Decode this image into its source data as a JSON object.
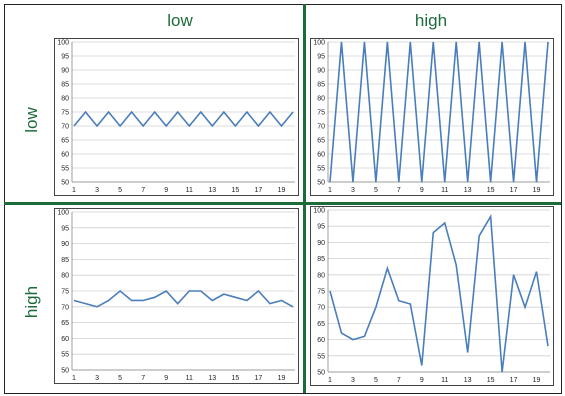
{
  "column_headers": [
    "low",
    "high"
  ],
  "row_headers": [
    "low",
    "high"
  ],
  "line_color": "#4a7ebb",
  "divider_color": "#1e6b3a",
  "chart_data": [
    {
      "type": "line",
      "panel": "top-left",
      "x": [
        1,
        2,
        3,
        4,
        5,
        6,
        7,
        8,
        9,
        10,
        11,
        12,
        13,
        14,
        15,
        16,
        17,
        18,
        19,
        20
      ],
      "xticks": [
        1,
        3,
        5,
        7,
        9,
        11,
        13,
        15,
        17,
        19
      ],
      "series": [
        {
          "values": [
            70,
            75,
            70,
            75,
            70,
            75,
            70,
            75,
            70,
            75,
            70,
            75,
            70,
            75,
            70,
            75,
            70,
            75,
            70,
            75
          ]
        }
      ],
      "ylim": [
        50,
        100
      ],
      "yticks": [
        50,
        55,
        60,
        65,
        70,
        75,
        80,
        85,
        90,
        95,
        100
      ],
      "grid": true
    },
    {
      "type": "line",
      "panel": "top-right",
      "x": [
        1,
        2,
        3,
        4,
        5,
        6,
        7,
        8,
        9,
        10,
        11,
        12,
        13,
        14,
        15,
        16,
        17,
        18,
        19,
        20
      ],
      "xticks": [
        1,
        3,
        5,
        7,
        9,
        11,
        13,
        15,
        17,
        19
      ],
      "series": [
        {
          "values": [
            50,
            100,
            50,
            100,
            50,
            100,
            50,
            100,
            50,
            100,
            50,
            100,
            50,
            100,
            50,
            100,
            50,
            100,
            50,
            100
          ]
        }
      ],
      "ylim": [
        50,
        100
      ],
      "yticks": [
        50,
        55,
        60,
        65,
        70,
        75,
        80,
        85,
        90,
        95,
        100
      ],
      "grid": true
    },
    {
      "type": "line",
      "panel": "bottom-left",
      "x": [
        1,
        2,
        3,
        4,
        5,
        6,
        7,
        8,
        9,
        10,
        11,
        12,
        13,
        14,
        15,
        16,
        17,
        18,
        19,
        20
      ],
      "xticks": [
        1,
        3,
        5,
        7,
        9,
        11,
        13,
        15,
        17,
        19
      ],
      "series": [
        {
          "values": [
            72,
            71,
            70,
            72,
            75,
            72,
            72,
            73,
            75,
            71,
            75,
            75,
            72,
            74,
            73,
            72,
            75,
            71,
            72,
            70
          ]
        }
      ],
      "ylim": [
        50,
        100
      ],
      "yticks": [
        50,
        55,
        60,
        65,
        70,
        75,
        80,
        85,
        90,
        95,
        100
      ],
      "grid": true
    },
    {
      "type": "line",
      "panel": "bottom-right",
      "x": [
        1,
        2,
        3,
        4,
        5,
        6,
        7,
        8,
        9,
        10,
        11,
        12,
        13,
        14,
        15,
        16,
        17,
        18,
        19,
        20
      ],
      "xticks": [
        1,
        3,
        5,
        7,
        9,
        11,
        13,
        15,
        17,
        19
      ],
      "series": [
        {
          "values": [
            75,
            62,
            60,
            61,
            70,
            82,
            72,
            71,
            52,
            93,
            96,
            83,
            56,
            92,
            98,
            50,
            80,
            70,
            81,
            58
          ]
        }
      ],
      "ylim": [
        50,
        100
      ],
      "yticks": [
        50,
        55,
        60,
        65,
        70,
        75,
        80,
        85,
        90,
        95,
        100
      ],
      "grid": true
    }
  ]
}
